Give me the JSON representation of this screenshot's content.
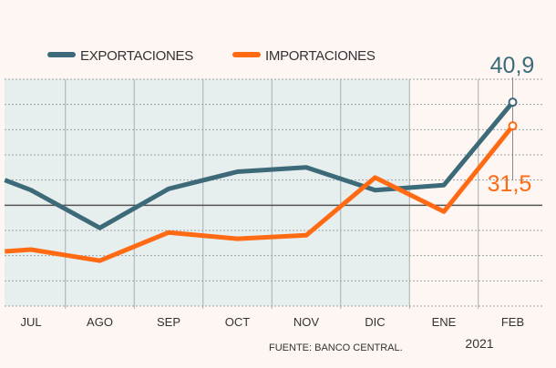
{
  "chart_data": {
    "type": "line",
    "title": "",
    "xlabel": "",
    "ylabel": "",
    "categories": [
      "",
      "JUL",
      "AGO",
      "SEP",
      "OCT",
      "NOV",
      "DIC",
      "ENE",
      "FEB"
    ],
    "x": [
      -0.38,
      0,
      1,
      2,
      3,
      4,
      5,
      6,
      7
    ],
    "series": [
      {
        "name": "EXPORTACIONES",
        "color": "#3d6a78",
        "values": [
          10,
          6,
          -9,
          6.5,
          13.3,
          15,
          6,
          8,
          40.9
        ]
      },
      {
        "name": "IMPORTACIONES",
        "color": "#ff6a13",
        "values": [
          -18.3,
          -17.6,
          -22,
          -10.8,
          -13.3,
          -11.9,
          11,
          -2.5,
          31.5
        ]
      }
    ],
    "ylim": [
      -40,
      50
    ],
    "grid": true,
    "legend": "top",
    "shaded_range": [
      "JUL",
      "DIC"
    ],
    "annotations": {
      "exports_last": "40,9",
      "imports_last": "31,5",
      "year": "2021"
    },
    "source": "FUENTE: BANCO CENTRAL."
  }
}
